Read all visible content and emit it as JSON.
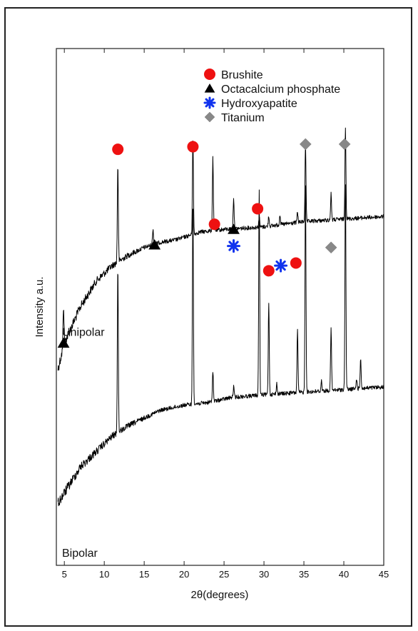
{
  "chart_data": {
    "type": "line",
    "xlabel": "2θ(degrees)",
    "ylabel": "Intensity a.u.",
    "xlim": [
      4,
      45
    ],
    "xticks": [
      5,
      10,
      15,
      20,
      25,
      30,
      35,
      40,
      45
    ],
    "grid": false,
    "legend": {
      "placement": "top-right",
      "entries": [
        {
          "name": "Brushite",
          "marker": "circle",
          "color": "#ee1111"
        },
        {
          "name": "Octacalcium phosphate",
          "marker": "triangle",
          "color": "#000000"
        },
        {
          "name": "Hydroxyapatite",
          "marker": "asterisk",
          "color": "#1133ee"
        },
        {
          "name": "Titanium",
          "marker": "diamond",
          "color": "#888888"
        }
      ]
    },
    "series": [
      {
        "name": "Unipolar",
        "baseline": [
          [
            4.2,
            0.62
          ],
          [
            5,
            0.57
          ],
          [
            7,
            0.5
          ],
          [
            9,
            0.45
          ],
          [
            11,
            0.42
          ],
          [
            13,
            0.4
          ],
          [
            15,
            0.385
          ],
          [
            17,
            0.375
          ],
          [
            19,
            0.37
          ],
          [
            22,
            0.355
          ],
          [
            25,
            0.35
          ],
          [
            30,
            0.345
          ],
          [
            35,
            0.335
          ],
          [
            40,
            0.33
          ],
          [
            45,
            0.325
          ]
        ],
        "peaks": [
          [
            4.9,
            0.08
          ],
          [
            11.7,
            0.19
          ],
          [
            16.1,
            0.03
          ],
          [
            21.1,
            0.19
          ],
          [
            23.6,
            0.14
          ],
          [
            26.2,
            0.06
          ],
          [
            29.4,
            0.02
          ],
          [
            30.6,
            0.02
          ],
          [
            32.0,
            0.02
          ],
          [
            34.2,
            0.02
          ],
          [
            35.2,
            0.15
          ],
          [
            38.4,
            0.05
          ],
          [
            40.2,
            0.18
          ]
        ]
      },
      {
        "name": "Bipolar",
        "baseline": [
          [
            4.2,
            0.88
          ],
          [
            5,
            0.86
          ],
          [
            7,
            0.81
          ],
          [
            9,
            0.78
          ],
          [
            11,
            0.75
          ],
          [
            13,
            0.73
          ],
          [
            15,
            0.715
          ],
          [
            17,
            0.7
          ],
          [
            20,
            0.69
          ],
          [
            23,
            0.685
          ],
          [
            26,
            0.675
          ],
          [
            30,
            0.67
          ],
          [
            35,
            0.665
          ],
          [
            40,
            0.66
          ],
          [
            45,
            0.655
          ]
        ],
        "peaks": [
          [
            11.7,
            0.32
          ],
          [
            21.1,
            0.4
          ],
          [
            23.6,
            0.06
          ],
          [
            26.2,
            0.02
          ],
          [
            29.4,
            0.4
          ],
          [
            30.6,
            0.18
          ],
          [
            31.6,
            0.02
          ],
          [
            34.2,
            0.12
          ],
          [
            35.2,
            0.4
          ],
          [
            37.2,
            0.02
          ],
          [
            38.4,
            0.12
          ],
          [
            40.2,
            0.4
          ],
          [
            41.6,
            0.02
          ],
          [
            42.1,
            0.06
          ]
        ]
      }
    ],
    "annotations": [
      {
        "phase": "Octacalcium phosphate",
        "x": 4.9,
        "y": 0.57
      },
      {
        "phase": "Brushite",
        "x": 11.7,
        "y": 0.195
      },
      {
        "phase": "Octacalcium phosphate",
        "x": 16.3,
        "y": 0.38
      },
      {
        "phase": "Brushite",
        "x": 21.1,
        "y": 0.19
      },
      {
        "phase": "Brushite",
        "x": 23.8,
        "y": 0.34
      },
      {
        "phase": "Octacalcium phosphate",
        "x": 26.2,
        "y": 0.35
      },
      {
        "phase": "Hydroxyapatite",
        "x": 26.2,
        "y": 0.382
      },
      {
        "phase": "Brushite",
        "x": 29.2,
        "y": 0.31
      },
      {
        "phase": "Brushite",
        "x": 30.6,
        "y": 0.43
      },
      {
        "phase": "Hydroxyapatite",
        "x": 32.1,
        "y": 0.42
      },
      {
        "phase": "Brushite",
        "x": 34.0,
        "y": 0.415
      },
      {
        "phase": "Titanium",
        "x": 35.2,
        "y": 0.185
      },
      {
        "phase": "Titanium",
        "x": 38.4,
        "y": 0.385
      },
      {
        "phase": "Titanium",
        "x": 40.1,
        "y": 0.185
      }
    ]
  }
}
